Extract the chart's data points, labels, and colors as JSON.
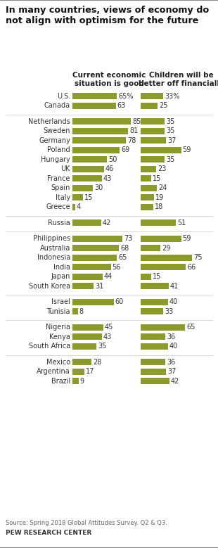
{
  "title": "In many countries, views of economy do\nnot align with optimism for the future",
  "col1_header": "Current economic\nsituation is good",
  "col2_header": "Children will be\nbetter off financially",
  "bar_color": "#8B9A2A",
  "bg_color": "#FFFFFF",
  "countries": [
    "U.S.",
    "Canada",
    null,
    "Netherlands",
    "Sweden",
    "Germany",
    "Poland",
    "Hungary",
    "UK",
    "France",
    "Spain",
    "Italy",
    "Greece",
    null,
    "Russia",
    null,
    "Philippines",
    "Australia",
    "Indonesia",
    "India",
    "Japan",
    "South Korea",
    null,
    "Israel",
    "Tunisia",
    null,
    "Nigeria",
    "Kenya",
    "South Africa",
    null,
    "Mexico",
    "Argentina",
    "Brazil"
  ],
  "val1": [
    65,
    63,
    null,
    85,
    81,
    78,
    69,
    50,
    46,
    43,
    30,
    15,
    4,
    null,
    42,
    null,
    73,
    68,
    65,
    56,
    44,
    31,
    null,
    60,
    8,
    null,
    45,
    43,
    35,
    null,
    28,
    17,
    9
  ],
  "val2": [
    33,
    25,
    null,
    35,
    35,
    37,
    59,
    35,
    23,
    15,
    24,
    19,
    18,
    null,
    51,
    null,
    59,
    29,
    75,
    66,
    15,
    41,
    null,
    40,
    33,
    null,
    65,
    36,
    40,
    null,
    36,
    37,
    42
  ],
  "show_pct": [
    true,
    false,
    null,
    false,
    false,
    false,
    false,
    false,
    false,
    false,
    false,
    false,
    false,
    null,
    false,
    null,
    false,
    false,
    false,
    false,
    false,
    false,
    null,
    false,
    false,
    null,
    false,
    false,
    false,
    null,
    false,
    false,
    false
  ],
  "source_text": "Source: Spring 2018 Global Attitudes Survey. Q2 & Q3.",
  "footer_text": "PEW RESEARCH CENTER"
}
